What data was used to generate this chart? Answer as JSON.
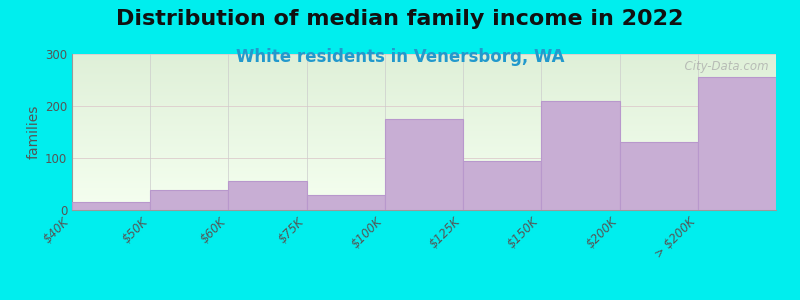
{
  "title": "Distribution of median family income in 2022",
  "subtitle": "White residents in Venersborg, WA",
  "ylabel": "families",
  "background_color": "#00EEEE",
  "bar_color": "#c8aed4",
  "bar_edge_color": "#b898cc",
  "tick_labels": [
    "$40K",
    "$50K",
    "$60K",
    "$75K",
    "$100K",
    "$125K",
    "$150K",
    "$200K",
    "> $200K"
  ],
  "bar_heights": [
    15,
    38,
    55,
    28,
    175,
    95,
    210,
    130,
    255
  ],
  "ylim": [
    0,
    300
  ],
  "yticks": [
    0,
    100,
    200,
    300
  ],
  "watermark": "  City-Data.com",
  "title_fontsize": 16,
  "subtitle_fontsize": 12,
  "ylabel_fontsize": 10,
  "tick_fontsize": 8.5,
  "gradient_top": "#dff0d8",
  "gradient_bottom": "#f5fff0"
}
